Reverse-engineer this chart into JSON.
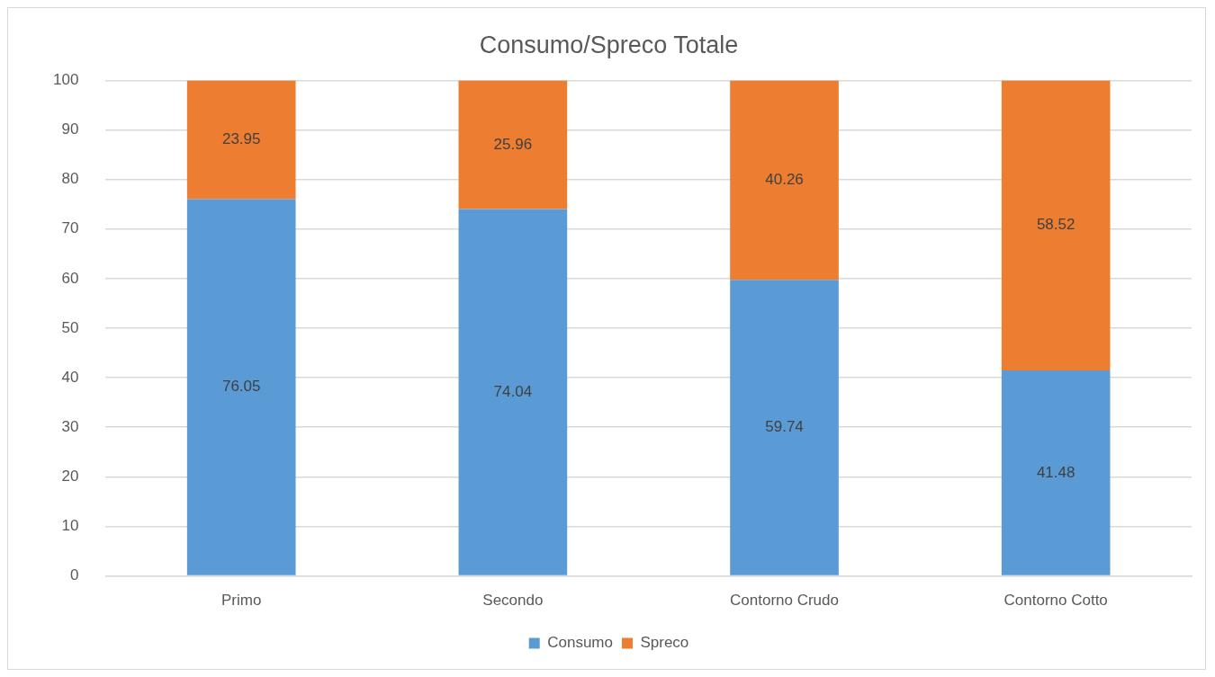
{
  "chart_data": {
    "type": "bar",
    "title": "Consumo/Spreco Totale",
    "categories": [
      "Primo",
      "Secondo",
      "Contorno Crudo",
      "Contorno Cotto"
    ],
    "series": [
      {
        "name": "Consumo",
        "color": "#5b9bd5",
        "values": [
          76.05,
          74.04,
          59.74,
          41.48
        ]
      },
      {
        "name": "Spreco",
        "color": "#ed7d31",
        "values": [
          23.95,
          25.96,
          40.26,
          58.52
        ]
      }
    ],
    "stacked": true,
    "ylim": [
      0,
      100
    ],
    "yticks": [
      0,
      10,
      20,
      30,
      40,
      50,
      60,
      70,
      80,
      90,
      100
    ],
    "grid": "y",
    "legend": "bottom",
    "data_labels": true
  }
}
